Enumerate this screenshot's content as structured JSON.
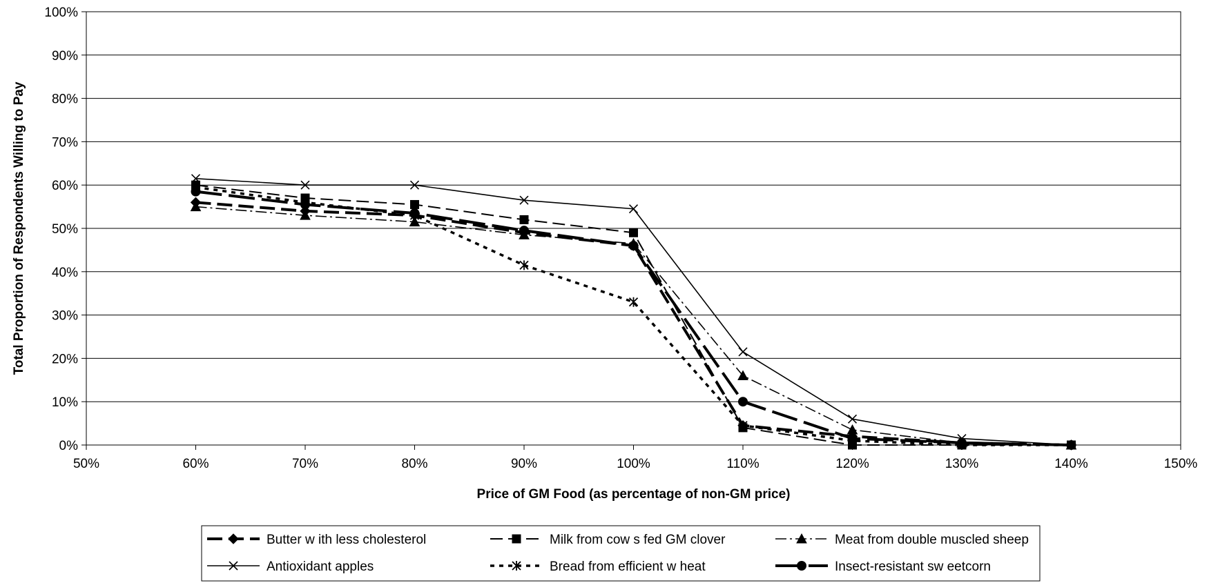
{
  "chart_data": {
    "type": "line",
    "title": "",
    "xlabel": "Price of GM Food (as percentage of non-GM price)",
    "ylabel": "Total Proportion of Respondents Willing to Pay",
    "x": [
      60,
      70,
      80,
      90,
      100,
      110,
      120,
      130,
      140
    ],
    "xlim": [
      50,
      150
    ],
    "ylim": [
      0,
      100
    ],
    "x_ticks": [
      "50%",
      "60%",
      "70%",
      "80%",
      "90%",
      "100%",
      "110%",
      "120%",
      "130%",
      "140%",
      "150%"
    ],
    "y_ticks": [
      "0%",
      "10%",
      "20%",
      "30%",
      "40%",
      "50%",
      "60%",
      "70%",
      "80%",
      "90%",
      "100%"
    ],
    "grid": "horizontal",
    "legend_position": "bottom",
    "series": [
      {
        "name": "Butter w ith less cholesterol",
        "values": [
          56,
          54,
          53,
          49,
          46,
          4.5,
          2,
          0.5,
          0
        ],
        "marker": "diamond",
        "dash": "heavy-dash"
      },
      {
        "name": "Milk from cow s fed GM clover",
        "values": [
          60,
          57,
          55.5,
          52,
          49,
          4,
          0,
          0,
          0
        ],
        "marker": "square",
        "dash": "long-dash"
      },
      {
        "name": "Meat from double muscled sheep",
        "values": [
          55,
          53,
          51.5,
          48.5,
          46.5,
          16,
          3.5,
          0.5,
          0
        ],
        "marker": "triangle",
        "dash": "dash-dot"
      },
      {
        "name": "Antioxidant apples",
        "values": [
          61.5,
          60,
          60,
          56.5,
          54.5,
          21.5,
          6,
          1.5,
          0
        ],
        "marker": "x",
        "dash": "solid"
      },
      {
        "name": "Bread from efficient w heat",
        "values": [
          59.5,
          56,
          53,
          41.5,
          33,
          4.5,
          1,
          0,
          0
        ],
        "marker": "star",
        "dash": "dotted"
      },
      {
        "name": "Insect-resistant sw eetcorn",
        "values": [
          58.5,
          55.5,
          53.5,
          49.5,
          46,
          10,
          1.5,
          0.5,
          0
        ],
        "marker": "circle",
        "dash": "heavy-long-dash"
      }
    ]
  }
}
